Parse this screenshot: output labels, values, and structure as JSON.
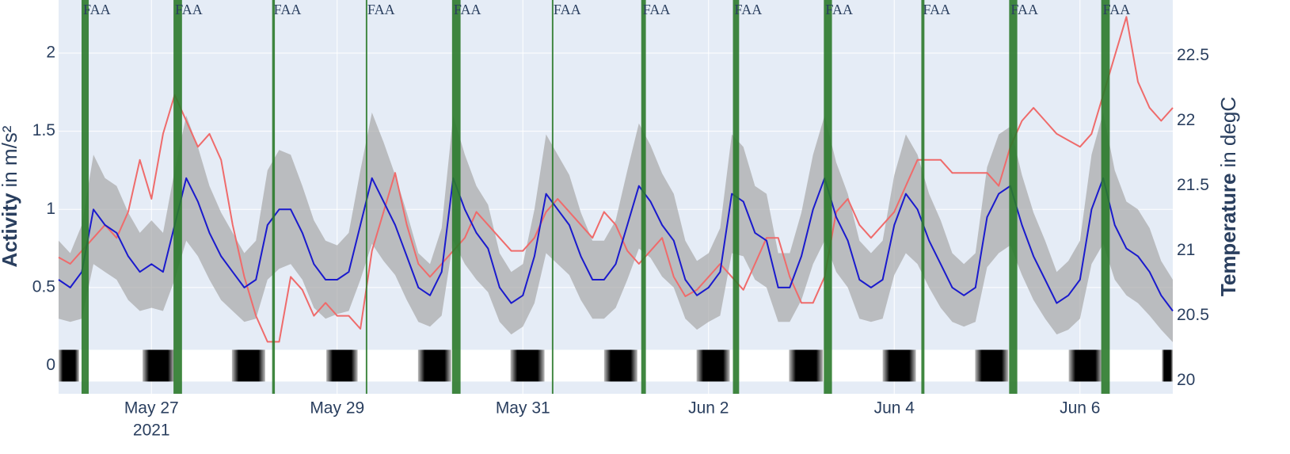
{
  "chart_data": {
    "type": "line",
    "grid": true,
    "ylabel": [
      "Activity",
      "in m/s²"
    ],
    "y2label": [
      "Temperature",
      "in degC"
    ],
    "xlim": [
      "2021-05-26 00:00",
      "2021-06-07 00:00"
    ],
    "xticks": [
      {
        "value": "2021-05-27 00:00",
        "label": "May 27"
      },
      {
        "value": "2021-05-29 00:00",
        "label": "May 29"
      },
      {
        "value": "2021-05-31 00:00",
        "label": "May 31"
      },
      {
        "value": "2021-06-02 00:00",
        "label": "Jun 2"
      },
      {
        "value": "2021-06-04 00:00",
        "label": "Jun 4"
      },
      {
        "value": "2021-06-06 00:00",
        "label": "Jun 6"
      }
    ],
    "x_year": "2021",
    "ylim": [
      -0.18,
      2.34
    ],
    "yticks": [
      0,
      0.5,
      1,
      1.5,
      2
    ],
    "y2lim": [
      19.9,
      22.93
    ],
    "y2ticks": [
      20,
      20.5,
      21,
      21.5,
      22,
      22.5
    ],
    "x": [
      "2021-05-26 00:00",
      "2021-05-26 03:00",
      "2021-05-26 06:00",
      "2021-05-26 09:00",
      "2021-05-26 12:00",
      "2021-05-26 15:00",
      "2021-05-26 18:00",
      "2021-05-26 21:00",
      "2021-05-27 00:00",
      "2021-05-27 03:00",
      "2021-05-27 06:00",
      "2021-05-27 09:00",
      "2021-05-27 12:00",
      "2021-05-27 15:00",
      "2021-05-27 18:00",
      "2021-05-27 21:00",
      "2021-05-28 00:00",
      "2021-05-28 03:00",
      "2021-05-28 06:00",
      "2021-05-28 09:00",
      "2021-05-28 12:00",
      "2021-05-28 15:00",
      "2021-05-28 18:00",
      "2021-05-28 21:00",
      "2021-05-29 00:00",
      "2021-05-29 03:00",
      "2021-05-29 06:00",
      "2021-05-29 09:00",
      "2021-05-29 12:00",
      "2021-05-29 15:00",
      "2021-05-29 18:00",
      "2021-05-29 21:00",
      "2021-05-30 00:00",
      "2021-05-30 03:00",
      "2021-05-30 06:00",
      "2021-05-30 09:00",
      "2021-05-30 12:00",
      "2021-05-30 15:00",
      "2021-05-30 18:00",
      "2021-05-30 21:00",
      "2021-05-31 00:00",
      "2021-05-31 03:00",
      "2021-05-31 06:00",
      "2021-05-31 09:00",
      "2021-05-31 12:00",
      "2021-05-31 15:00",
      "2021-05-31 18:00",
      "2021-05-31 21:00",
      "2021-06-01 00:00",
      "2021-06-01 03:00",
      "2021-06-01 06:00",
      "2021-06-01 09:00",
      "2021-06-01 12:00",
      "2021-06-01 15:00",
      "2021-06-01 18:00",
      "2021-06-01 21:00",
      "2021-06-02 00:00",
      "2021-06-02 03:00",
      "2021-06-02 06:00",
      "2021-06-02 09:00",
      "2021-06-02 12:00",
      "2021-06-02 15:00",
      "2021-06-02 18:00",
      "2021-06-02 21:00",
      "2021-06-03 00:00",
      "2021-06-03 03:00",
      "2021-06-03 06:00",
      "2021-06-03 09:00",
      "2021-06-03 12:00",
      "2021-06-03 15:00",
      "2021-06-03 18:00",
      "2021-06-03 21:00",
      "2021-06-04 00:00",
      "2021-06-04 03:00",
      "2021-06-04 06:00",
      "2021-06-04 09:00",
      "2021-06-04 12:00",
      "2021-06-04 15:00",
      "2021-06-04 18:00",
      "2021-06-04 21:00",
      "2021-06-05 00:00",
      "2021-06-05 03:00",
      "2021-06-05 06:00",
      "2021-06-05 09:00",
      "2021-06-05 12:00",
      "2021-06-05 15:00",
      "2021-06-05 18:00",
      "2021-06-05 21:00",
      "2021-06-06 00:00",
      "2021-06-06 03:00",
      "2021-06-06 06:00",
      "2021-06-06 09:00",
      "2021-06-06 12:00",
      "2021-06-06 15:00",
      "2021-06-06 18:00",
      "2021-06-06 21:00",
      "2021-06-07 00:00"
    ],
    "series": [
      {
        "color": "#1a1acd",
        "band_color": "#a8a8a8",
        "values": [
          0.55,
          0.5,
          0.6,
          1.0,
          0.9,
          0.85,
          0.7,
          0.6,
          0.65,
          0.6,
          0.9,
          1.2,
          1.05,
          0.85,
          0.7,
          0.6,
          0.5,
          0.55,
          0.9,
          1.0,
          1.0,
          0.85,
          0.65,
          0.55,
          0.55,
          0.6,
          0.9,
          1.2,
          1.05,
          0.9,
          0.7,
          0.5,
          0.45,
          0.6,
          1.2,
          1.0,
          0.85,
          0.75,
          0.5,
          0.4,
          0.45,
          0.7,
          1.1,
          1.0,
          0.9,
          0.7,
          0.55,
          0.55,
          0.65,
          0.9,
          1.15,
          1.05,
          0.9,
          0.8,
          0.55,
          0.45,
          0.5,
          0.6,
          1.1,
          1.05,
          0.85,
          0.8,
          0.5,
          0.5,
          0.7,
          1.0,
          1.2,
          0.95,
          0.8,
          0.55,
          0.5,
          0.55,
          0.9,
          1.1,
          1.0,
          0.8,
          0.65,
          0.5,
          0.45,
          0.5,
          0.95,
          1.1,
          1.15,
          0.9,
          0.7,
          0.55,
          0.4,
          0.45,
          0.55,
          1.0,
          1.2,
          0.9,
          0.75,
          0.7,
          0.6,
          0.45,
          0.35
        ],
        "std": [
          0.25,
          0.22,
          0.3,
          0.35,
          0.3,
          0.3,
          0.28,
          0.25,
          0.28,
          0.25,
          0.35,
          0.4,
          0.35,
          0.3,
          0.28,
          0.25,
          0.22,
          0.25,
          0.35,
          0.38,
          0.35,
          0.3,
          0.28,
          0.25,
          0.22,
          0.25,
          0.35,
          0.42,
          0.38,
          0.32,
          0.28,
          0.22,
          0.2,
          0.28,
          0.4,
          0.35,
          0.3,
          0.28,
          0.22,
          0.2,
          0.2,
          0.3,
          0.38,
          0.35,
          0.32,
          0.28,
          0.25,
          0.25,
          0.28,
          0.35,
          0.4,
          0.36,
          0.33,
          0.3,
          0.25,
          0.22,
          0.22,
          0.28,
          0.38,
          0.35,
          0.3,
          0.3,
          0.22,
          0.22,
          0.28,
          0.35,
          0.4,
          0.35,
          0.3,
          0.25,
          0.22,
          0.25,
          0.32,
          0.38,
          0.35,
          0.3,
          0.28,
          0.22,
          0.2,
          0.22,
          0.32,
          0.38,
          0.38,
          0.32,
          0.28,
          0.25,
          0.2,
          0.22,
          0.25,
          0.35,
          0.42,
          0.35,
          0.3,
          0.3,
          0.28,
          0.22,
          0.2
        ]
      },
      {
        "color": "#ef6b6b",
        "axis": "y2",
        "values": [
          20.95,
          20.9,
          21.0,
          21.1,
          21.2,
          21.1,
          21.3,
          21.7,
          21.4,
          21.9,
          22.2,
          22.0,
          21.8,
          21.9,
          21.7,
          21.2,
          20.8,
          20.5,
          20.3,
          20.3,
          20.8,
          20.7,
          20.5,
          20.6,
          20.5,
          20.5,
          20.4,
          21.0,
          21.3,
          21.6,
          21.2,
          20.9,
          20.8,
          20.9,
          21.0,
          21.1,
          21.3,
          21.2,
          21.1,
          21.0,
          21.0,
          21.1,
          21.3,
          21.4,
          21.3,
          21.2,
          21.1,
          21.3,
          21.2,
          21.0,
          20.9,
          21.0,
          21.1,
          20.8,
          20.65,
          20.7,
          20.8,
          20.9,
          20.8,
          20.7,
          20.9,
          21.1,
          21.1,
          20.8,
          20.6,
          20.6,
          20.8,
          21.3,
          21.4,
          21.2,
          21.1,
          21.2,
          21.3,
          21.5,
          21.7,
          21.7,
          21.7,
          21.6,
          21.6,
          21.6,
          21.6,
          21.5,
          21.8,
          22.0,
          22.1,
          22.0,
          21.9,
          21.85,
          21.8,
          21.9,
          22.2,
          22.5,
          22.8,
          22.3,
          22.1,
          22.0,
          22.1
        ]
      }
    ],
    "dark_periods": [
      [
        "2021-05-26 00:00",
        "2021-05-26 05:18"
      ],
      [
        "2021-05-26 21:42",
        "2021-05-27 05:54"
      ],
      [
        "2021-05-27 20:48",
        "2021-05-28 05:24"
      ],
      [
        "2021-05-28 21:12",
        "2021-05-29 05:18"
      ],
      [
        "2021-05-29 20:54",
        "2021-05-30 05:30"
      ],
      [
        "2021-05-30 20:48",
        "2021-05-31 05:36"
      ],
      [
        "2021-05-31 21:00",
        "2021-06-01 05:36"
      ],
      [
        "2021-06-01 20:54",
        "2021-06-02 05:30"
      ],
      [
        "2021-06-02 20:48",
        "2021-06-03 05:36"
      ],
      [
        "2021-06-03 21:00",
        "2021-06-04 05:36"
      ],
      [
        "2021-06-04 20:54",
        "2021-06-05 05:30"
      ],
      [
        "2021-06-05 21:06",
        "2021-06-06 05:42"
      ],
      [
        "2021-06-06 21:12",
        "2021-06-07 00:00"
      ]
    ],
    "annotations": [
      {
        "start": "2021-05-26 05:56",
        "end": "2021-05-26 07:47",
        "text": "FAA"
      },
      {
        "start": "2021-05-27 05:42",
        "end": "2021-05-27 07:54",
        "text": "FAA"
      },
      {
        "start": "2021-05-28 07:12",
        "end": "2021-05-28 07:54",
        "text": "FAA"
      },
      {
        "start": "2021-05-29 07:24",
        "end": "2021-05-29 07:48",
        "text": "FAA"
      },
      {
        "start": "2021-05-30 05:42",
        "end": "2021-05-30 07:54",
        "text": "FAA"
      },
      {
        "start": "2021-05-31 07:30",
        "end": "2021-05-31 07:54",
        "text": "FAA"
      },
      {
        "start": "2021-06-01 06:36",
        "end": "2021-06-01 07:48",
        "text": "FAA"
      },
      {
        "start": "2021-06-02 06:18",
        "end": "2021-06-02 07:54",
        "text": "FAA"
      },
      {
        "start": "2021-06-03 05:48",
        "end": "2021-06-03 07:54",
        "text": "FAA"
      },
      {
        "start": "2021-06-04 07:00",
        "end": "2021-06-04 07:48",
        "text": "FAA"
      },
      {
        "start": "2021-06-05 05:42",
        "end": "2021-06-05 07:48",
        "text": "FAA"
      },
      {
        "start": "2021-06-06 05:30",
        "end": "2021-06-06 07:42",
        "text": "FAA"
      }
    ],
    "annotation_color": "#2b7a2b"
  }
}
